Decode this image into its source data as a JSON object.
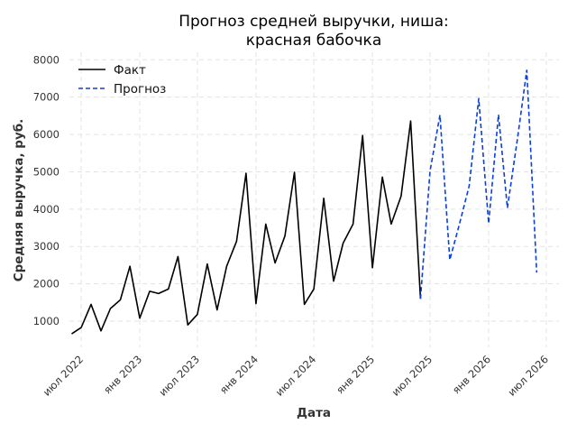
{
  "chart_data": {
    "type": "line",
    "title": [
      "Прогноз средней выручки, ниша:",
      "красная бабочка"
    ],
    "xlabel": "Дата",
    "ylabel": "Средняя выручка, руб.",
    "ylim": [
      300,
      8200
    ],
    "yticks": [
      1000,
      2000,
      3000,
      4000,
      5000,
      6000,
      7000,
      8000
    ],
    "xlim": [
      "2022-05-25",
      "2026-08-10"
    ],
    "xticks": [
      {
        "date": "2022-07-01",
        "label": "июл 2022"
      },
      {
        "date": "2023-01-01",
        "label": "янв 2023"
      },
      {
        "date": "2023-07-01",
        "label": "июл 2023"
      },
      {
        "date": "2024-01-01",
        "label": "янв 2024"
      },
      {
        "date": "2024-07-01",
        "label": "июл 2024"
      },
      {
        "date": "2025-01-01",
        "label": "янв 2025"
      },
      {
        "date": "2025-07-01",
        "label": "июл 2025"
      },
      {
        "date": "2026-01-01",
        "label": "янв 2026"
      },
      {
        "date": "2026-07-01",
        "label": "июл 2026"
      }
    ],
    "grid": true,
    "legend_position": "top-left",
    "series": [
      {
        "name": "Факт",
        "color": "#000000",
        "style": "solid",
        "points": [
          [
            "2022-06-01",
            660
          ],
          [
            "2022-07-01",
            830
          ],
          [
            "2022-08-01",
            1450
          ],
          [
            "2022-09-01",
            740
          ],
          [
            "2022-10-01",
            1340
          ],
          [
            "2022-11-01",
            1570
          ],
          [
            "2022-12-01",
            2470
          ],
          [
            "2023-01-01",
            1080
          ],
          [
            "2023-02-01",
            1800
          ],
          [
            "2023-03-01",
            1740
          ],
          [
            "2023-04-01",
            1860
          ],
          [
            "2023-05-01",
            2730
          ],
          [
            "2023-06-01",
            900
          ],
          [
            "2023-07-01",
            1180
          ],
          [
            "2023-08-01",
            2530
          ],
          [
            "2023-09-01",
            1300
          ],
          [
            "2023-10-01",
            2470
          ],
          [
            "2023-11-01",
            3140
          ],
          [
            "2023-12-01",
            4960
          ],
          [
            "2024-01-01",
            1470
          ],
          [
            "2024-02-01",
            3600
          ],
          [
            "2024-03-01",
            2560
          ],
          [
            "2024-04-01",
            3280
          ],
          [
            "2024-05-01",
            4990
          ],
          [
            "2024-06-01",
            1450
          ],
          [
            "2024-07-01",
            1860
          ],
          [
            "2024-08-01",
            4290
          ],
          [
            "2024-09-01",
            2070
          ],
          [
            "2024-10-01",
            3090
          ],
          [
            "2024-11-01",
            3600
          ],
          [
            "2024-12-01",
            5970
          ],
          [
            "2025-01-01",
            2430
          ],
          [
            "2025-02-01",
            4860
          ],
          [
            "2025-03-01",
            3600
          ],
          [
            "2025-04-01",
            4350
          ],
          [
            "2025-05-01",
            6360
          ],
          [
            "2025-06-01",
            1600
          ]
        ]
      },
      {
        "name": "Прогноз",
        "color": "#0b3fd6",
        "style": "dashed",
        "points": [
          [
            "2025-06-01",
            1600
          ],
          [
            "2025-07-01",
            5020
          ],
          [
            "2025-08-01",
            6520
          ],
          [
            "2025-09-01",
            2640
          ],
          [
            "2025-10-01",
            3590
          ],
          [
            "2025-11-01",
            4620
          ],
          [
            "2025-12-01",
            6960
          ],
          [
            "2026-01-01",
            3620
          ],
          [
            "2026-02-01",
            6530
          ],
          [
            "2026-03-01",
            4030
          ],
          [
            "2026-04-01",
            5840
          ],
          [
            "2026-05-01",
            7720
          ],
          [
            "2026-06-01",
            2300
          ]
        ]
      }
    ]
  }
}
